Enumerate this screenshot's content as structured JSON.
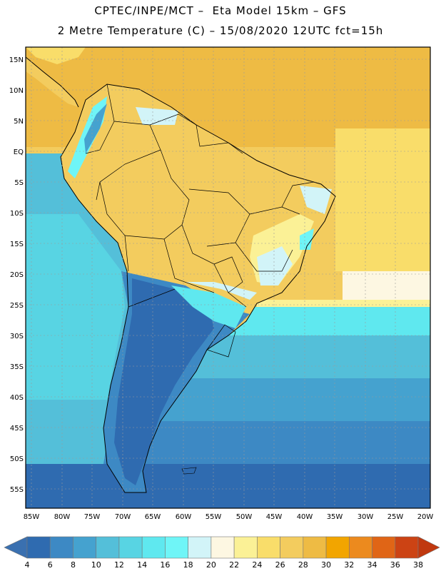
{
  "header": {
    "title_line1": "CPTEC/INPE/MCT –  Eta Model 15km – GFS",
    "title_line2": "2 Metre Temperature (C) – 15/08/2020 12UTC fct=15h"
  },
  "map": {
    "lat_labels": [
      "15N",
      "10N",
      "5N",
      "EQ",
      "5S",
      "10S",
      "15S",
      "20S",
      "25S",
      "30S",
      "35S",
      "40S",
      "45S",
      "50S",
      "55S"
    ],
    "lon_labels": [
      "85W",
      "80W",
      "75W",
      "70W",
      "65W",
      "60W",
      "55W",
      "50W",
      "45W",
      "40W",
      "35W",
      "30W",
      "25W",
      "20W"
    ],
    "lon_range": [
      -85,
      -20
    ],
    "lat_range": [
      -58,
      16
    ]
  },
  "colorbar": {
    "levels": [
      "4",
      "6",
      "8",
      "10",
      "12",
      "14",
      "16",
      "18",
      "20",
      "22",
      "24",
      "26",
      "28",
      "30",
      "32",
      "34",
      "36",
      "38"
    ],
    "colors": [
      "#3a70b0",
      "#2f6bb0",
      "#3d89c4",
      "#45a2cf",
      "#54bfd9",
      "#58d4e3",
      "#5fe8ef",
      "#6ff5f7",
      "#d2f4f8",
      "#fdf7e2",
      "#fbf196",
      "#f9dd6a",
      "#f3cc5e",
      "#eebb44",
      "#f2a500",
      "#ec8a1e",
      "#e06516",
      "#cc4314",
      "#c0380f"
    ]
  }
}
